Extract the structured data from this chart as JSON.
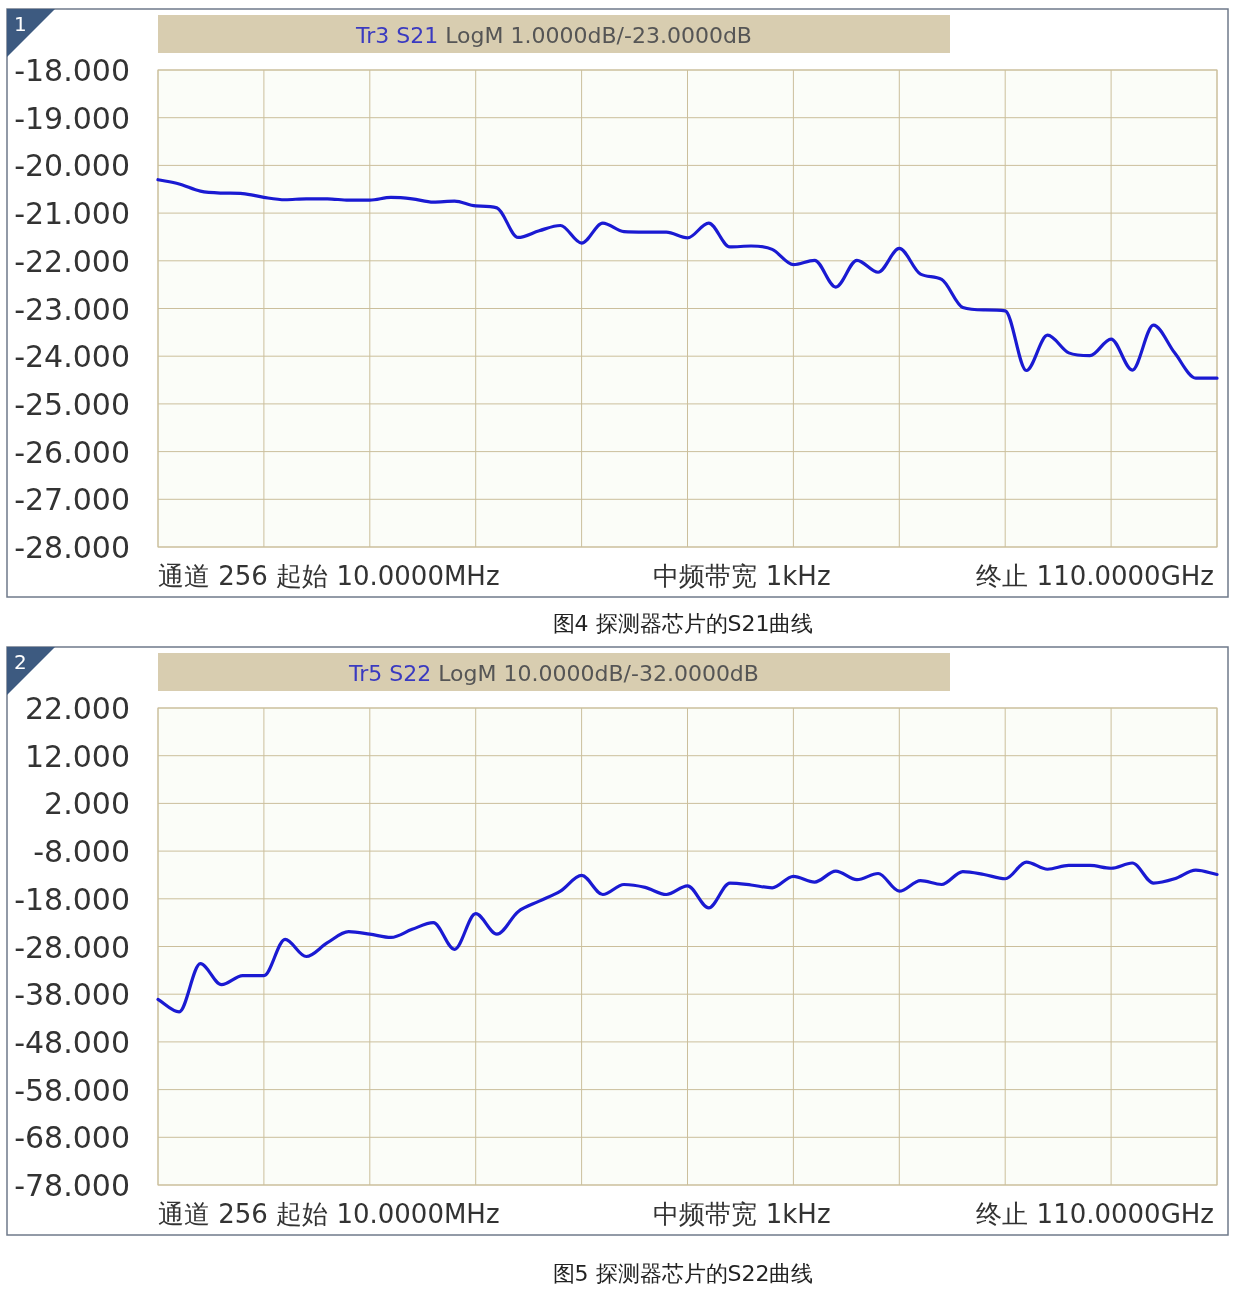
{
  "chart_data": [
    {
      "type": "line",
      "title": "图4  探测器芯片的S21曲线",
      "subtitle": "Tr3 S21 LogM 1.0000dB/-23.0000dB",
      "categories": [
        null,
        null,
        null,
        null,
        null,
        null,
        null,
        null,
        null,
        null,
        null,
        null,
        null,
        null,
        null,
        null,
        null,
        null,
        null,
        null,
        null,
        null,
        null,
        null,
        null,
        null,
        null,
        null,
        null,
        null,
        null,
        null,
        null,
        null,
        null,
        null,
        null,
        null,
        null,
        null,
        null,
        null,
        null,
        null,
        null,
        null,
        null,
        null,
        null,
        null,
        null
      ],
      "series": [
        {
          "color": "#1a1ad2",
          "values": [
            -20.3,
            -20.39,
            -20.54,
            -20.58,
            -20.59,
            -20.67,
            -20.72,
            -20.7,
            -20.7,
            -20.73,
            -20.73,
            -20.67,
            -20.7,
            -20.77,
            -20.75,
            -20.85,
            -20.89,
            -21.51,
            -21.37,
            -21.26,
            -21.63,
            -21.21,
            -21.39,
            -21.4,
            -21.4,
            -21.52,
            -21.21,
            -21.71,
            -21.69,
            -21.76,
            -22.08,
            -21.99,
            -22.55,
            -21.99,
            -22.24,
            -21.74,
            -22.28,
            -22.39,
            -22.98,
            -23.03,
            -23.05,
            -24.3,
            -23.56,
            -23.93,
            -23.99,
            -23.64,
            -24.29,
            -23.35,
            -23.93,
            -24.46,
            -24.46
          ]
        }
      ],
      "ylim": [
        -28,
        -18
      ],
      "yticks": [
        {
          "value": -18,
          "label": "-18.000"
        },
        {
          "value": -19,
          "label": "-19.000"
        },
        {
          "value": -20,
          "label": "-20.000"
        },
        {
          "value": -21,
          "label": "-21.000"
        },
        {
          "value": -22,
          "label": "-22.000"
        },
        {
          "value": -23,
          "label": "-23.000"
        },
        {
          "value": -24,
          "label": "-24.000"
        },
        {
          "value": -25,
          "label": "-25.000"
        },
        {
          "value": -26,
          "label": "-26.000"
        },
        {
          "value": -27,
          "label": "-27.000"
        },
        {
          "value": -28,
          "label": "-28.000"
        }
      ],
      "grid": true,
      "annotations": [
        "1",
        "通道 256 起始 10.0000MHz",
        "中频带宽 1kHz",
        "终止 110.0000GHz"
      ]
    },
    {
      "type": "line",
      "title": "图5  探测器芯片的S22曲线",
      "subtitle": "Tr5 S22 LogM 10.0000dB/-32.0000dB",
      "categories": [
        null,
        null,
        null,
        null,
        null,
        null,
        null,
        null,
        null,
        null,
        null,
        null,
        null,
        null,
        null,
        null,
        null,
        null,
        null,
        null,
        null,
        null,
        null,
        null,
        null,
        null,
        null,
        null,
        null,
        null,
        null,
        null,
        null,
        null,
        null,
        null,
        null,
        null,
        null,
        null,
        null,
        null,
        null,
        null,
        null,
        null,
        null,
        null,
        null,
        null,
        null
      ],
      "series": [
        {
          "color": "#1a1ad2",
          "values": [
            -39.1,
            -41.7,
            -31.6,
            -36.0,
            -34.1,
            -34.1,
            -26.5,
            -30.1,
            -27.2,
            -24.9,
            -25.4,
            -26.1,
            -24.4,
            -23.0,
            -28.6,
            -21.1,
            -25.4,
            -20.7,
            -18.5,
            -16.4,
            -13.1,
            -17.1,
            -15.0,
            -15.6,
            -17.1,
            -15.3,
            -19.9,
            -14.7,
            -15.1,
            -15.7,
            -13.3,
            -14.5,
            -12.2,
            -14.0,
            -12.7,
            -16.4,
            -14.2,
            -15.0,
            -12.3,
            -12.9,
            -13.8,
            -10.3,
            -11.8,
            -11.0,
            -11.0,
            -11.6,
            -10.5,
            -14.7,
            -13.8,
            -12.0,
            -12.9
          ]
        }
      ],
      "ylim": [
        -78,
        22
      ],
      "yticks": [
        {
          "value": 22,
          "label": "22.000"
        },
        {
          "value": 12,
          "label": "12.000"
        },
        {
          "value": 2,
          "label": "2.000"
        },
        {
          "value": -8,
          "label": "-8.000"
        },
        {
          "value": -18,
          "label": "-18.000"
        },
        {
          "value": -28,
          "label": "-28.000"
        },
        {
          "value": -38,
          "label": "-38.000"
        },
        {
          "value": -48,
          "label": "-48.000"
        },
        {
          "value": -58,
          "label": "-58.000"
        },
        {
          "value": -68,
          "label": "-68.000"
        },
        {
          "value": -78,
          "label": "-78.000"
        }
      ],
      "grid": true,
      "annotations": [
        "2",
        "通道 256 起始 10.0000MHz",
        "中频带宽 1kHz",
        "终止 110.0000GHz"
      ]
    }
  ]
}
